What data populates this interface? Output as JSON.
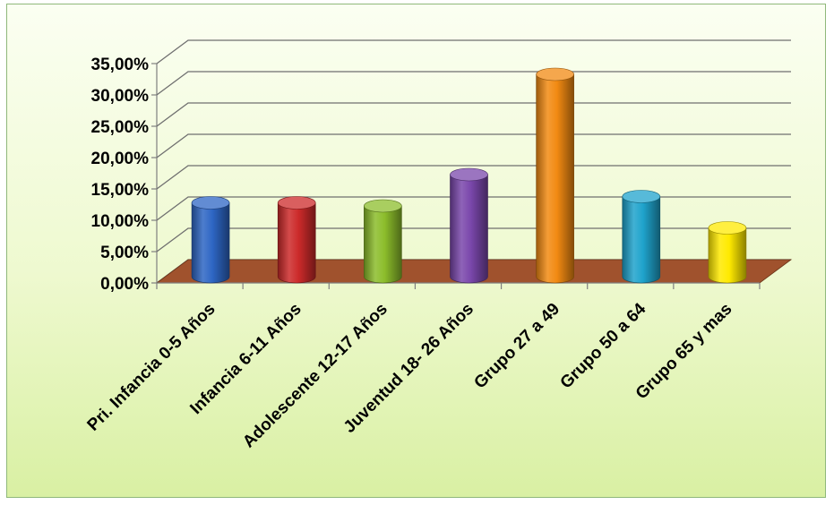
{
  "chart_data": {
    "type": "bar",
    "style": "3d-cylinder",
    "categories": [
      "Pri. Infancia 0-5 Años",
      "Infancia 6-11 Años",
      "Adolescente 12-17 Años",
      "Juventud 18- 26 Años",
      "Grupo 27 a 49",
      "Grupo 50 a 64",
      "Grupo 65 y mas"
    ],
    "values": [
      11.5,
      11.5,
      11.0,
      16.0,
      32.0,
      12.5,
      7.5
    ],
    "colors": [
      "#2e66c4",
      "#cc2a2a",
      "#8cbd2b",
      "#7a47ab",
      "#f28a12",
      "#1fa3cc",
      "#ffea00"
    ],
    "ylim": [
      0,
      35
    ],
    "yticks": [
      "0,00%",
      "5,00%",
      "10,00%",
      "15,00%",
      "20,00%",
      "25,00%",
      "30,00%",
      "35,00%"
    ],
    "grid": true,
    "floor_color": "#a0522d",
    "background": "light green gradient",
    "legend": "none"
  }
}
